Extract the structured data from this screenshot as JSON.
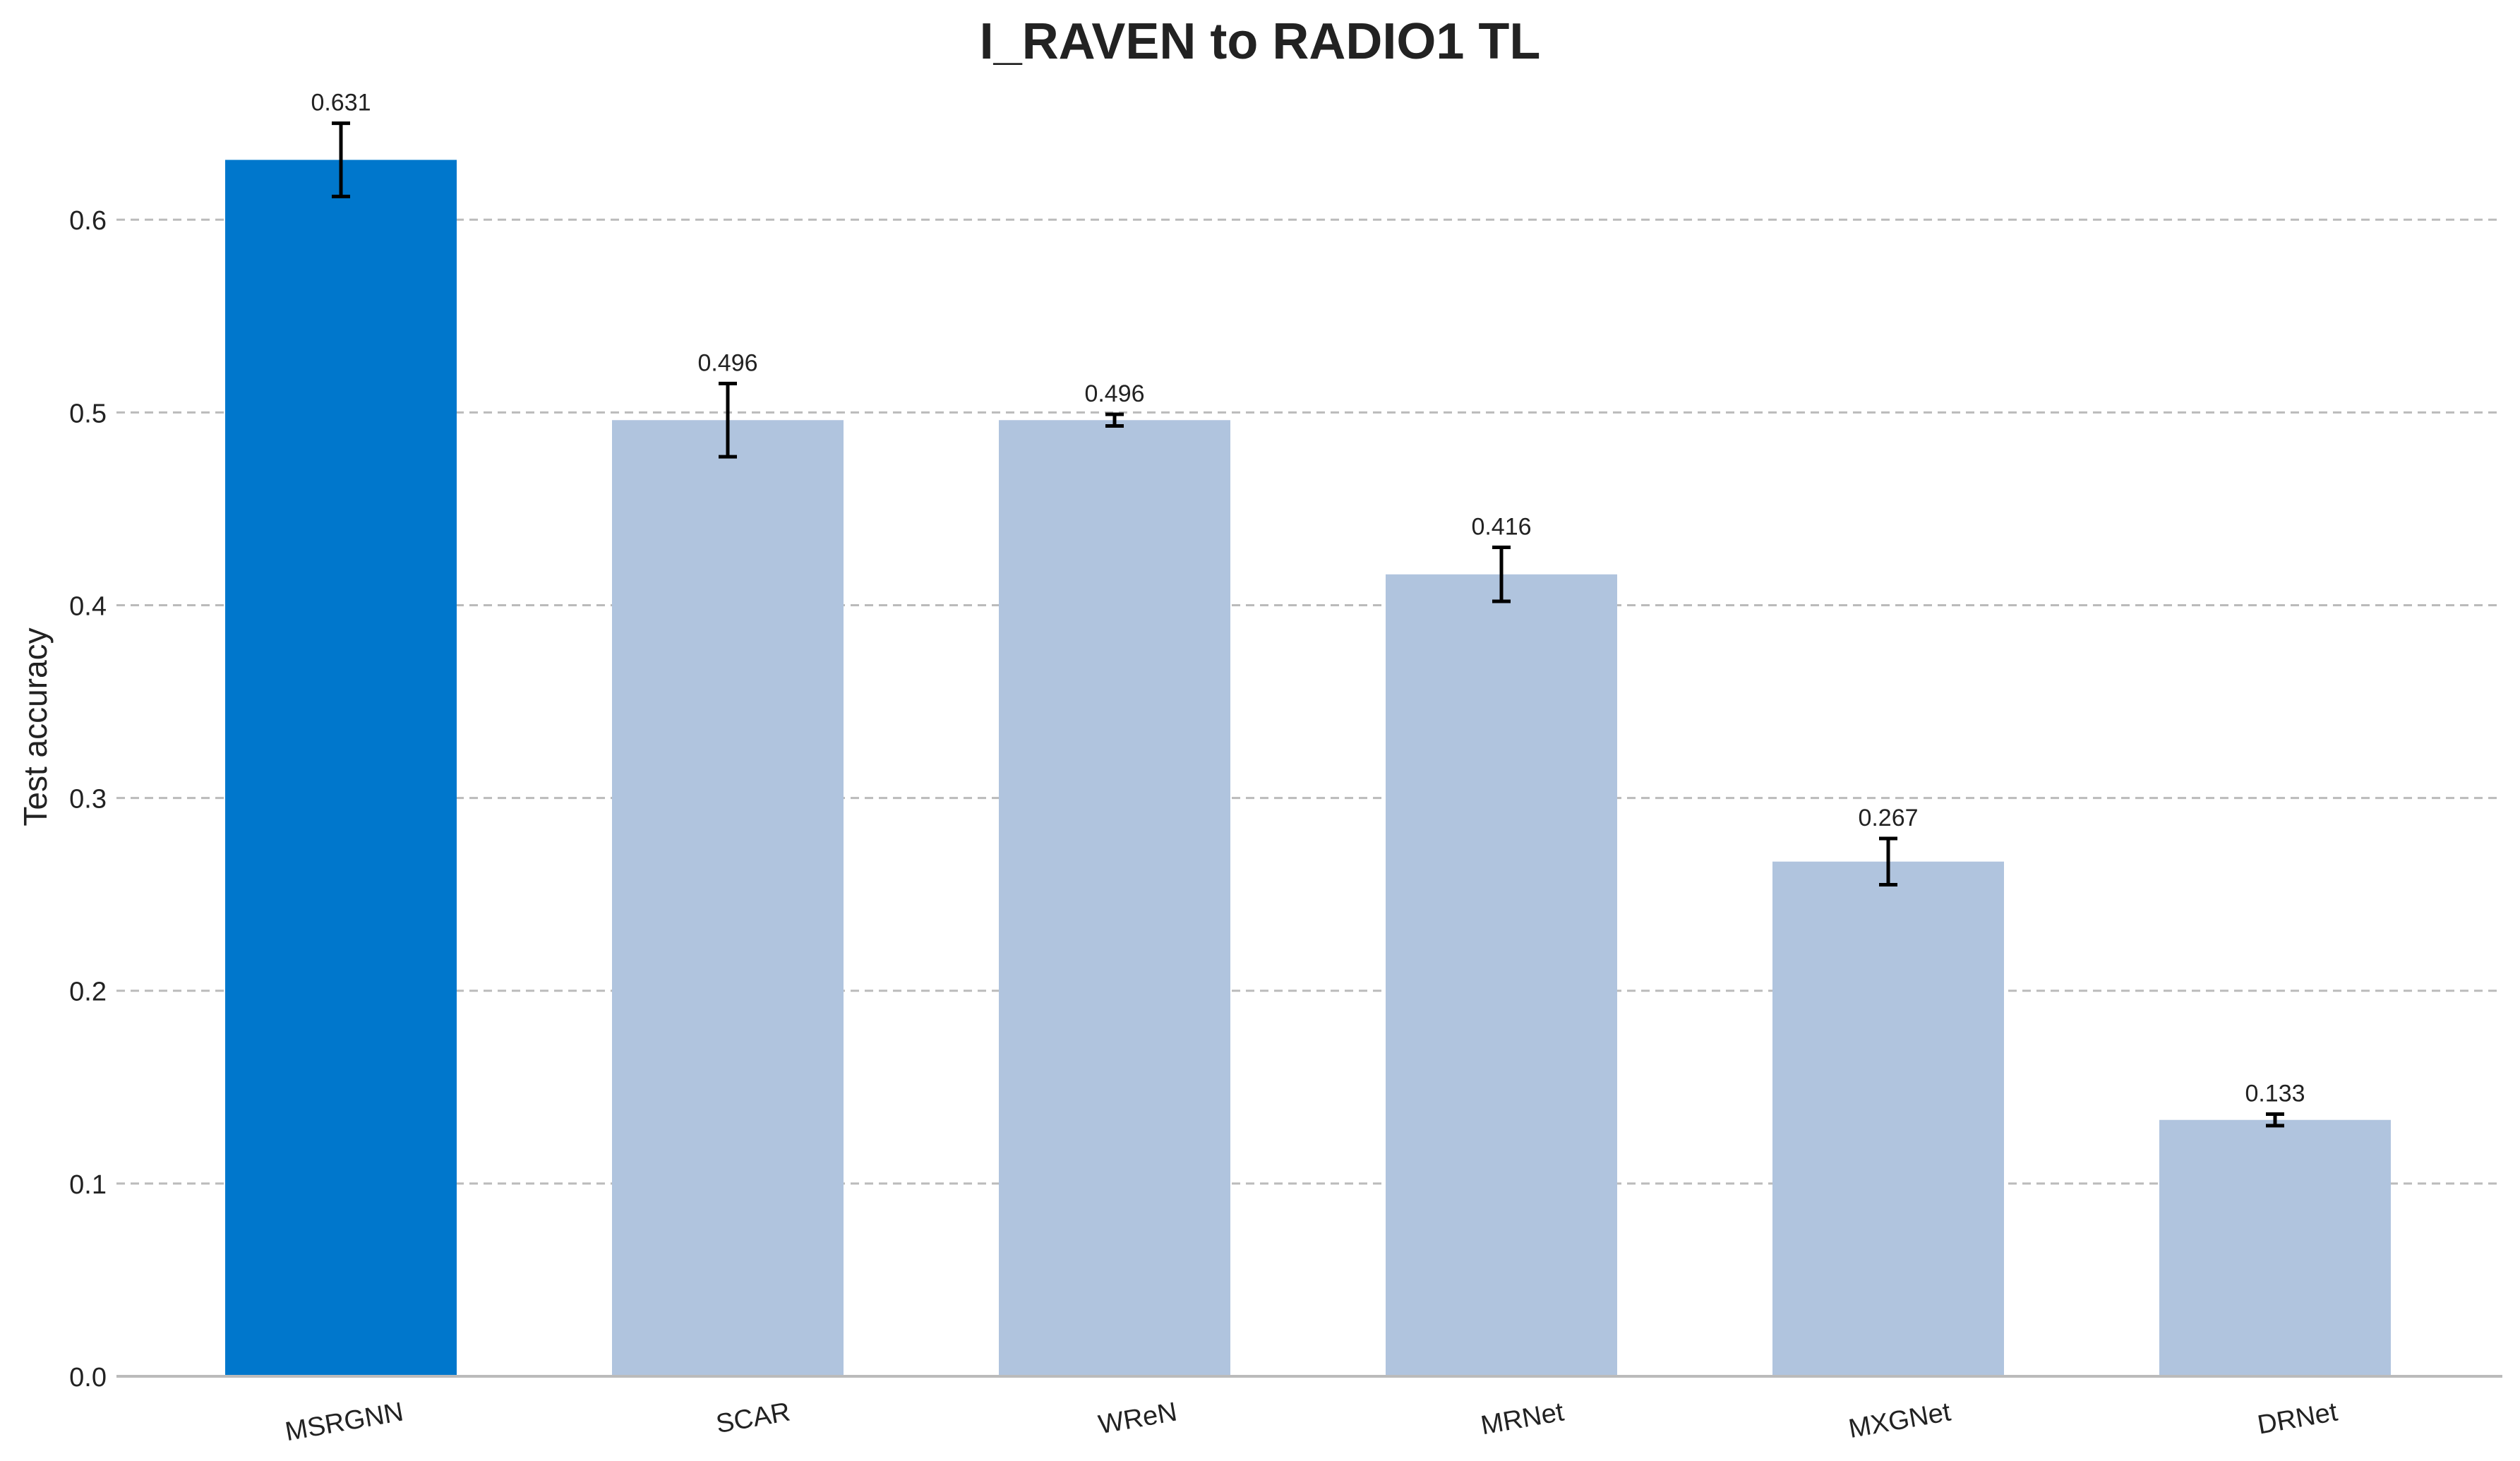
{
  "chart_data": {
    "type": "bar",
    "title": "I_RAVEN to RADIO1 TL",
    "xlabel": "",
    "ylabel": "Test accuracy",
    "ylim": [
      0,
      0.67
    ],
    "yticks": [
      0.0,
      0.1,
      0.2,
      0.3,
      0.4,
      0.5,
      0.6
    ],
    "ytick_labels": [
      "0.0",
      "0.1",
      "0.2",
      "0.3",
      "0.4",
      "0.5",
      "0.6"
    ],
    "grid": "horizontal dashed",
    "categories": [
      "MSRGNN",
      "SCAR",
      "WReN",
      "MRNet",
      "MXGNet",
      "DRNet"
    ],
    "values": [
      0.631,
      0.496,
      0.496,
      0.416,
      0.267,
      0.133
    ],
    "errors": [
      0.019,
      0.019,
      0.003,
      0.014,
      0.012,
      0.003
    ],
    "value_labels": [
      "0.631",
      "0.496",
      "0.496",
      "0.416",
      "0.267",
      "0.133"
    ],
    "colors": {
      "highlight": "#0077cc",
      "default": "#b0c4de",
      "error_bar": "#000000",
      "grid": "#bbbbbb",
      "axis": "#bbbbbb",
      "text": "#222222"
    },
    "highlight_index": 0
  }
}
